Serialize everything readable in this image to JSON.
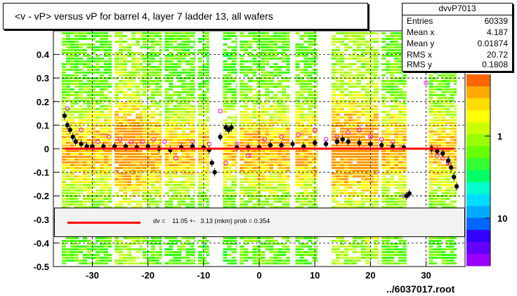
{
  "title": "<v - vP>       versus   vP for barrel 4, layer 7 ladder 13, all wafers",
  "stats": {
    "name": "dvvP7013",
    "rows": [
      {
        "label": "Entries",
        "value": "60339"
      },
      {
        "label": "Mean x",
        "value": "4.187"
      },
      {
        "label": "Mean y",
        "value": "0.01874"
      },
      {
        "label": "RMS x",
        "value": "20.72"
      },
      {
        "label": "RMS y",
        "value": "0.1808"
      }
    ]
  },
  "fit_text": "dv =    11.05 +-   3.13 (mkm) prob = 0.354",
  "file_label": "../6037017.root",
  "colors": {
    "fit": "#ff0000",
    "profile": "#000000",
    "profile2": "#ff00ff"
  },
  "chart_data": {
    "type": "heatmap",
    "xlim": [
      -37,
      37
    ],
    "ylim": [
      -0.5,
      0.5
    ],
    "x_ticks": [
      -30,
      -20,
      -10,
      0,
      10,
      20,
      30
    ],
    "x_tick_labels": [
      "-30",
      "-20",
      "-10",
      "0",
      "10",
      "20",
      "30"
    ],
    "y_ticks": [
      -0.5,
      -0.4,
      -0.3,
      -0.2,
      -0.1,
      0,
      0.1,
      0.2,
      0.3,
      0.4
    ],
    "y_tick_labels": [
      "-0.5",
      "-0.4",
      "-0.3",
      "-0.2",
      "-0.1",
      "0",
      "0.1",
      "0.2",
      "0.3",
      "0.4"
    ],
    "z_tick_labels": [
      "1",
      "10"
    ],
    "z_scale": "log",
    "grid": true,
    "columns": [
      {
        "x0": -35.5,
        "x1": -26.5,
        "intensity": 0.35
      },
      {
        "x0": -26,
        "x1": -21,
        "intensity": 0.85
      },
      {
        "x0": -21,
        "x1": -17.5,
        "intensity": 0.45
      },
      {
        "x0": -17,
        "x1": -11.5,
        "intensity": 0.3
      },
      {
        "x0": -11,
        "x1": -9,
        "intensity": 0.25
      },
      {
        "x0": -6.5,
        "x1": -4,
        "intensity": 0.2
      },
      {
        "x0": -3.5,
        "x1": 5.5,
        "intensity": 0.4
      },
      {
        "x0": 6.5,
        "x1": 10.5,
        "intensity": 0.4
      },
      {
        "x0": 13,
        "x1": 21.5,
        "intensity": 0.85
      },
      {
        "x0": 22,
        "x1": 26.5,
        "intensity": 0.4
      },
      {
        "x0": 30.5,
        "x1": 35.5,
        "intensity": 0.35
      }
    ],
    "profile": {
      "x": [
        -35,
        -34.5,
        -34,
        -33.5,
        -33,
        -32,
        -31,
        -30,
        -28,
        -26,
        -24,
        -22,
        -20,
        -18,
        -16,
        -14,
        -12,
        -10,
        -9,
        -8.5,
        -8,
        -7,
        -6,
        -5.5,
        -5,
        -4,
        -2,
        0,
        2,
        4,
        6,
        8,
        10,
        12,
        14,
        15,
        16,
        18,
        20,
        22,
        24,
        26,
        26.5,
        27,
        31,
        32,
        33,
        34,
        34.5,
        35,
        35.5
      ],
      "y": [
        0.14,
        0.1,
        0.08,
        0.05,
        0.03,
        0.02,
        0.01,
        0.01,
        0.01,
        0.01,
        0.01,
        0.005,
        0.01,
        0.0,
        -0.005,
        0.005,
        0.01,
        0.005,
        -0.005,
        -0.06,
        -0.1,
        0.05,
        0.09,
        0.08,
        0.09,
        0.005,
        0.005,
        0.005,
        0.015,
        0.015,
        0.02,
        0.01,
        0.025,
        0.02,
        0.03,
        0.04,
        0.03,
        0.025,
        0.02,
        0.015,
        0.01,
        0.005,
        -0.2,
        -0.19,
        0.0,
        -0.01,
        -0.02,
        -0.05,
        -0.08,
        -0.12,
        -0.16
      ]
    },
    "profile2": {
      "x": [
        -34.5,
        -32,
        -29,
        -27,
        -25,
        -23,
        -21,
        -19,
        -17,
        -15,
        -12,
        -9,
        -7,
        -6,
        -4,
        -2,
        1,
        4,
        7,
        10,
        12,
        14,
        16,
        18,
        20,
        22,
        24,
        26,
        30,
        32,
        33,
        34
      ],
      "y": [
        0.17,
        0.08,
        0.03,
        0.05,
        0.04,
        0.03,
        0.03,
        0.04,
        0.03,
        -0.04,
        0.03,
        0.02,
        0.16,
        -0.06,
        0.02,
        -0.03,
        0.04,
        0.05,
        0.06,
        0.08,
        0.04,
        0.05,
        0.07,
        0.08,
        0.05,
        0.04,
        0.03,
        -0.2,
        0.28,
        -0.03,
        -0.04,
        -0.06
      ]
    },
    "fit": {
      "x0": -35,
      "x1": 35,
      "y": 0.0
    }
  }
}
